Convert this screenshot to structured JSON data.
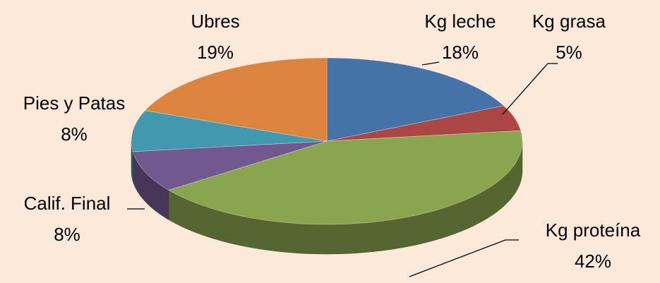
{
  "chart_data": {
    "type": "pie",
    "categories": [
      "Kg leche",
      "Kg grasa",
      "Kg proteína",
      "Calif. Final",
      "Pies y Patas",
      "Ubres"
    ],
    "values": [
      18,
      5,
      42,
      8,
      8,
      19
    ],
    "value_labels": [
      "18%",
      "5%",
      "42%",
      "8%",
      "8%",
      "19%"
    ],
    "colors": [
      "#4572a7",
      "#aa4643",
      "#89a54e",
      "#71588f",
      "#4198af",
      "#db843d"
    ]
  }
}
